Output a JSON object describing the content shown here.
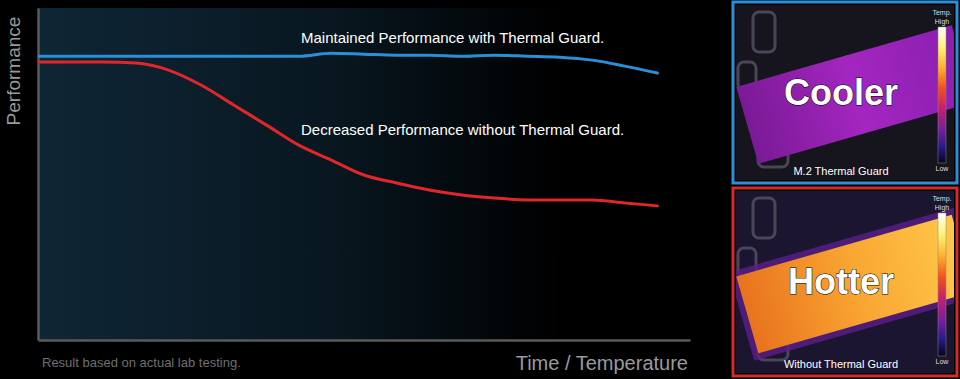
{
  "chart_data": {
    "type": "line",
    "x_label": "Time / Temperature",
    "y_label": "Performance",
    "note": "Result based on actual lab testing.",
    "x": [
      0,
      1,
      2,
      3,
      4,
      5,
      6,
      7,
      8,
      9,
      10,
      11,
      12,
      13,
      14,
      15,
      16,
      17,
      18,
      19
    ],
    "xlim": [
      0,
      20
    ],
    "ylim": [
      0,
      100
    ],
    "xticks": [],
    "yticks": [],
    "tick_labels": false,
    "grid": false,
    "series": [
      {
        "name": "Maintained Performance with Thermal Guard.",
        "color": "#2a8fd8",
        "values": [
          85.5,
          85.5,
          85.5,
          85.5,
          85.5,
          85.5,
          85.5,
          85.5,
          85.5,
          86.4,
          86.1,
          85.8,
          85.8,
          85.5,
          85.8,
          85.5,
          85.2,
          84.3,
          82.5,
          80.4
        ]
      },
      {
        "name": "Decreased Performance without Thermal Guard.",
        "color": "#e0262a",
        "values": [
          83.7,
          83.7,
          83.7,
          83.4,
          81.3,
          76.8,
          70.8,
          64.8,
          58.7,
          54.2,
          49.7,
          47.3,
          45.2,
          43.7,
          42.8,
          42.2,
          42.2,
          42.2,
          41.3,
          40.4
        ]
      }
    ]
  },
  "panels": [
    {
      "label": "Cooler",
      "caption": "M.2 Thermal Guard",
      "color": "#2a8fd8",
      "scale_title": "Temp.",
      "scale_high": "High",
      "scale_low": "Low"
    },
    {
      "label": "Hotter",
      "caption": "Without Thermal Guard",
      "color": "#d42a2a",
      "scale_title": "Temp.",
      "scale_high": "High",
      "scale_low": "Low"
    }
  ]
}
